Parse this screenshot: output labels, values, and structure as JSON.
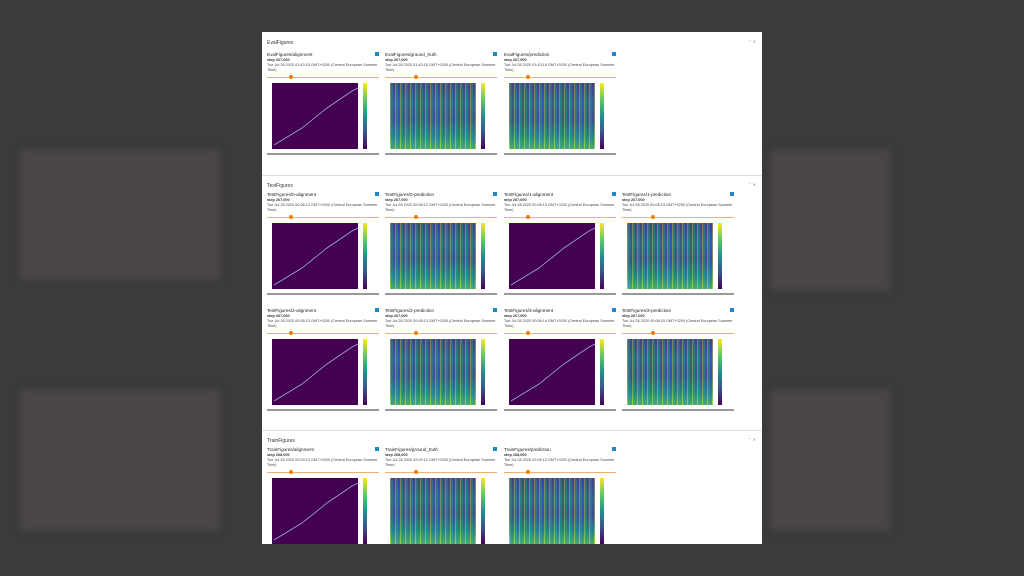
{
  "sections": [
    {
      "title": "EvalFigures",
      "cards": [
        {
          "title": "EvalFigures/alignment",
          "step": "step 267,000",
          "time": "Tue Jul 28 2020 01:43:15 GMT+0200 (Central European Summer Time)"
        },
        {
          "title": "EvalFigures/ground_truth",
          "step": "step 267,000",
          "time": "Tue Jul 28 2020 01:43:15 GMT+0200 (Central European Summer Time)"
        },
        {
          "title": "EvalFigures/prediction",
          "step": "step 267,000",
          "time": "Tue Jul 28 2020 01:43:18 GMT+0200 (Central European Summer Time)"
        }
      ]
    },
    {
      "title": "TestFigures",
      "cards": [
        {
          "title": "TestFigures/0-alignment",
          "step": "step 267,000",
          "time": "Tue Jul 28 2020 00:08:12 GMT+0200 (Central European Summer Time)"
        },
        {
          "title": "TestFigures/0-prediction",
          "step": "step 267,000",
          "time": "Tue Jul 28 2020 00:08:12 GMT+0200 (Central European Summer Time)"
        },
        {
          "title": "TestFigures/1-alignment",
          "step": "step 267,000",
          "time": "Tue Jul 28 2020 00:08:13 GMT+0200 (Central European Summer Time)"
        },
        {
          "title": "TestFigures/1-prediction",
          "step": "step 267,000",
          "time": "Tue Jul 28 2020 00:08:13 GMT+0200 (Central European Summer Time)"
        },
        {
          "title": "TestFigures/2-alignment",
          "step": "step 267,000",
          "time": "Tue Jul 28 2020 00:08:13 GMT+0200 (Central European Summer Time)"
        },
        {
          "title": "TestFigures/2-prediction",
          "step": "step 267,000",
          "time": "Tue Jul 28 2020 00:08:13 GMT+0200 (Central European Summer Time)"
        },
        {
          "title": "TestFigures/3-alignment",
          "step": "step 267,000",
          "time": "Tue Jul 28 2020 00:08:14 GMT+0200 (Central European Summer Time)"
        },
        {
          "title": "TestFigures/3-prediction",
          "step": "step 267,000",
          "time": "Tue Jul 28 2020 00:08:15 GMT+0200 (Central European Summer Time)"
        }
      ]
    },
    {
      "title": "TrainFigures",
      "cards": [
        {
          "title": "TrainFigures/alignment",
          "step": "step 268,000",
          "time": "Tue Jul 28 2020 02:09:12 GMT+0200 (Central European Summer Time)"
        },
        {
          "title": "TrainFigures/ground_truth",
          "step": "step 268,000",
          "time": "Tue Jul 28 2020 02:09:12 GMT+0200 (Central European Summer Time)"
        },
        {
          "title": "TrainFigures/prediction",
          "step": "step 268,000",
          "time": "Tue Jul 28 2020 02:09:12 GMT+0200 (Central European Summer Time)"
        }
      ]
    }
  ]
}
